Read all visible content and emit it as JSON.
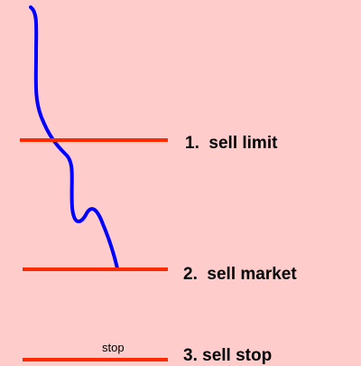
{
  "levels": [
    {
      "label": "1.  sell limit"
    },
    {
      "label": "2.  sell market"
    },
    {
      "label": "3. sell stop"
    }
  ],
  "stop_label": "stop"
}
